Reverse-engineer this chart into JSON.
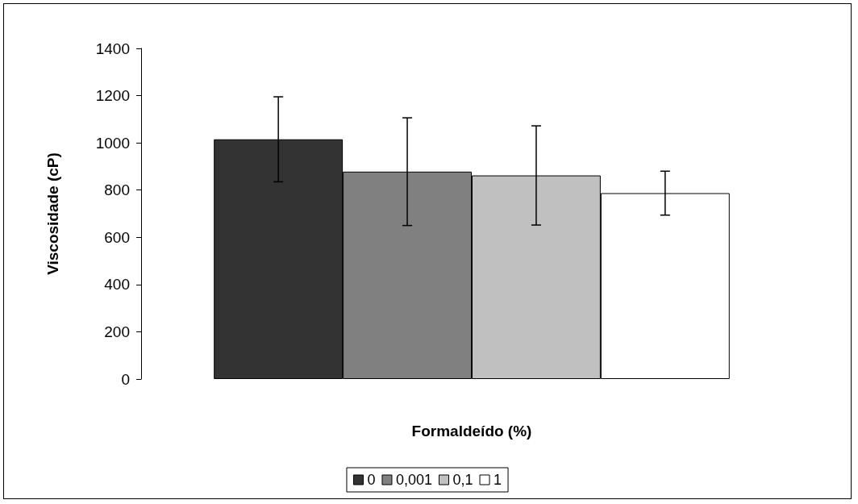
{
  "chart_data": {
    "type": "bar",
    "xlabel": "Formaldeído (%)",
    "ylabel": "Viscosidade (cP)",
    "categories": [
      null
    ],
    "series": [
      {
        "name": "0",
        "color": "#333333",
        "values": [
          1015
        ],
        "errors": [
          180
        ]
      },
      {
        "name": "0,001",
        "color": "#808080",
        "values": [
          878
        ],
        "errors": [
          228
        ]
      },
      {
        "name": "0,1",
        "color": "#c0c0c0",
        "values": [
          862
        ],
        "errors": [
          210
        ]
      },
      {
        "name": "1",
        "color": "#ffffff",
        "values": [
          787
        ],
        "errors": [
          93
        ]
      }
    ],
    "ylim": [
      0,
      1400
    ],
    "yticks": [
      0,
      200,
      400,
      600,
      800,
      1000,
      1200,
      1400
    ],
    "grid": false,
    "legend": "bottom"
  }
}
